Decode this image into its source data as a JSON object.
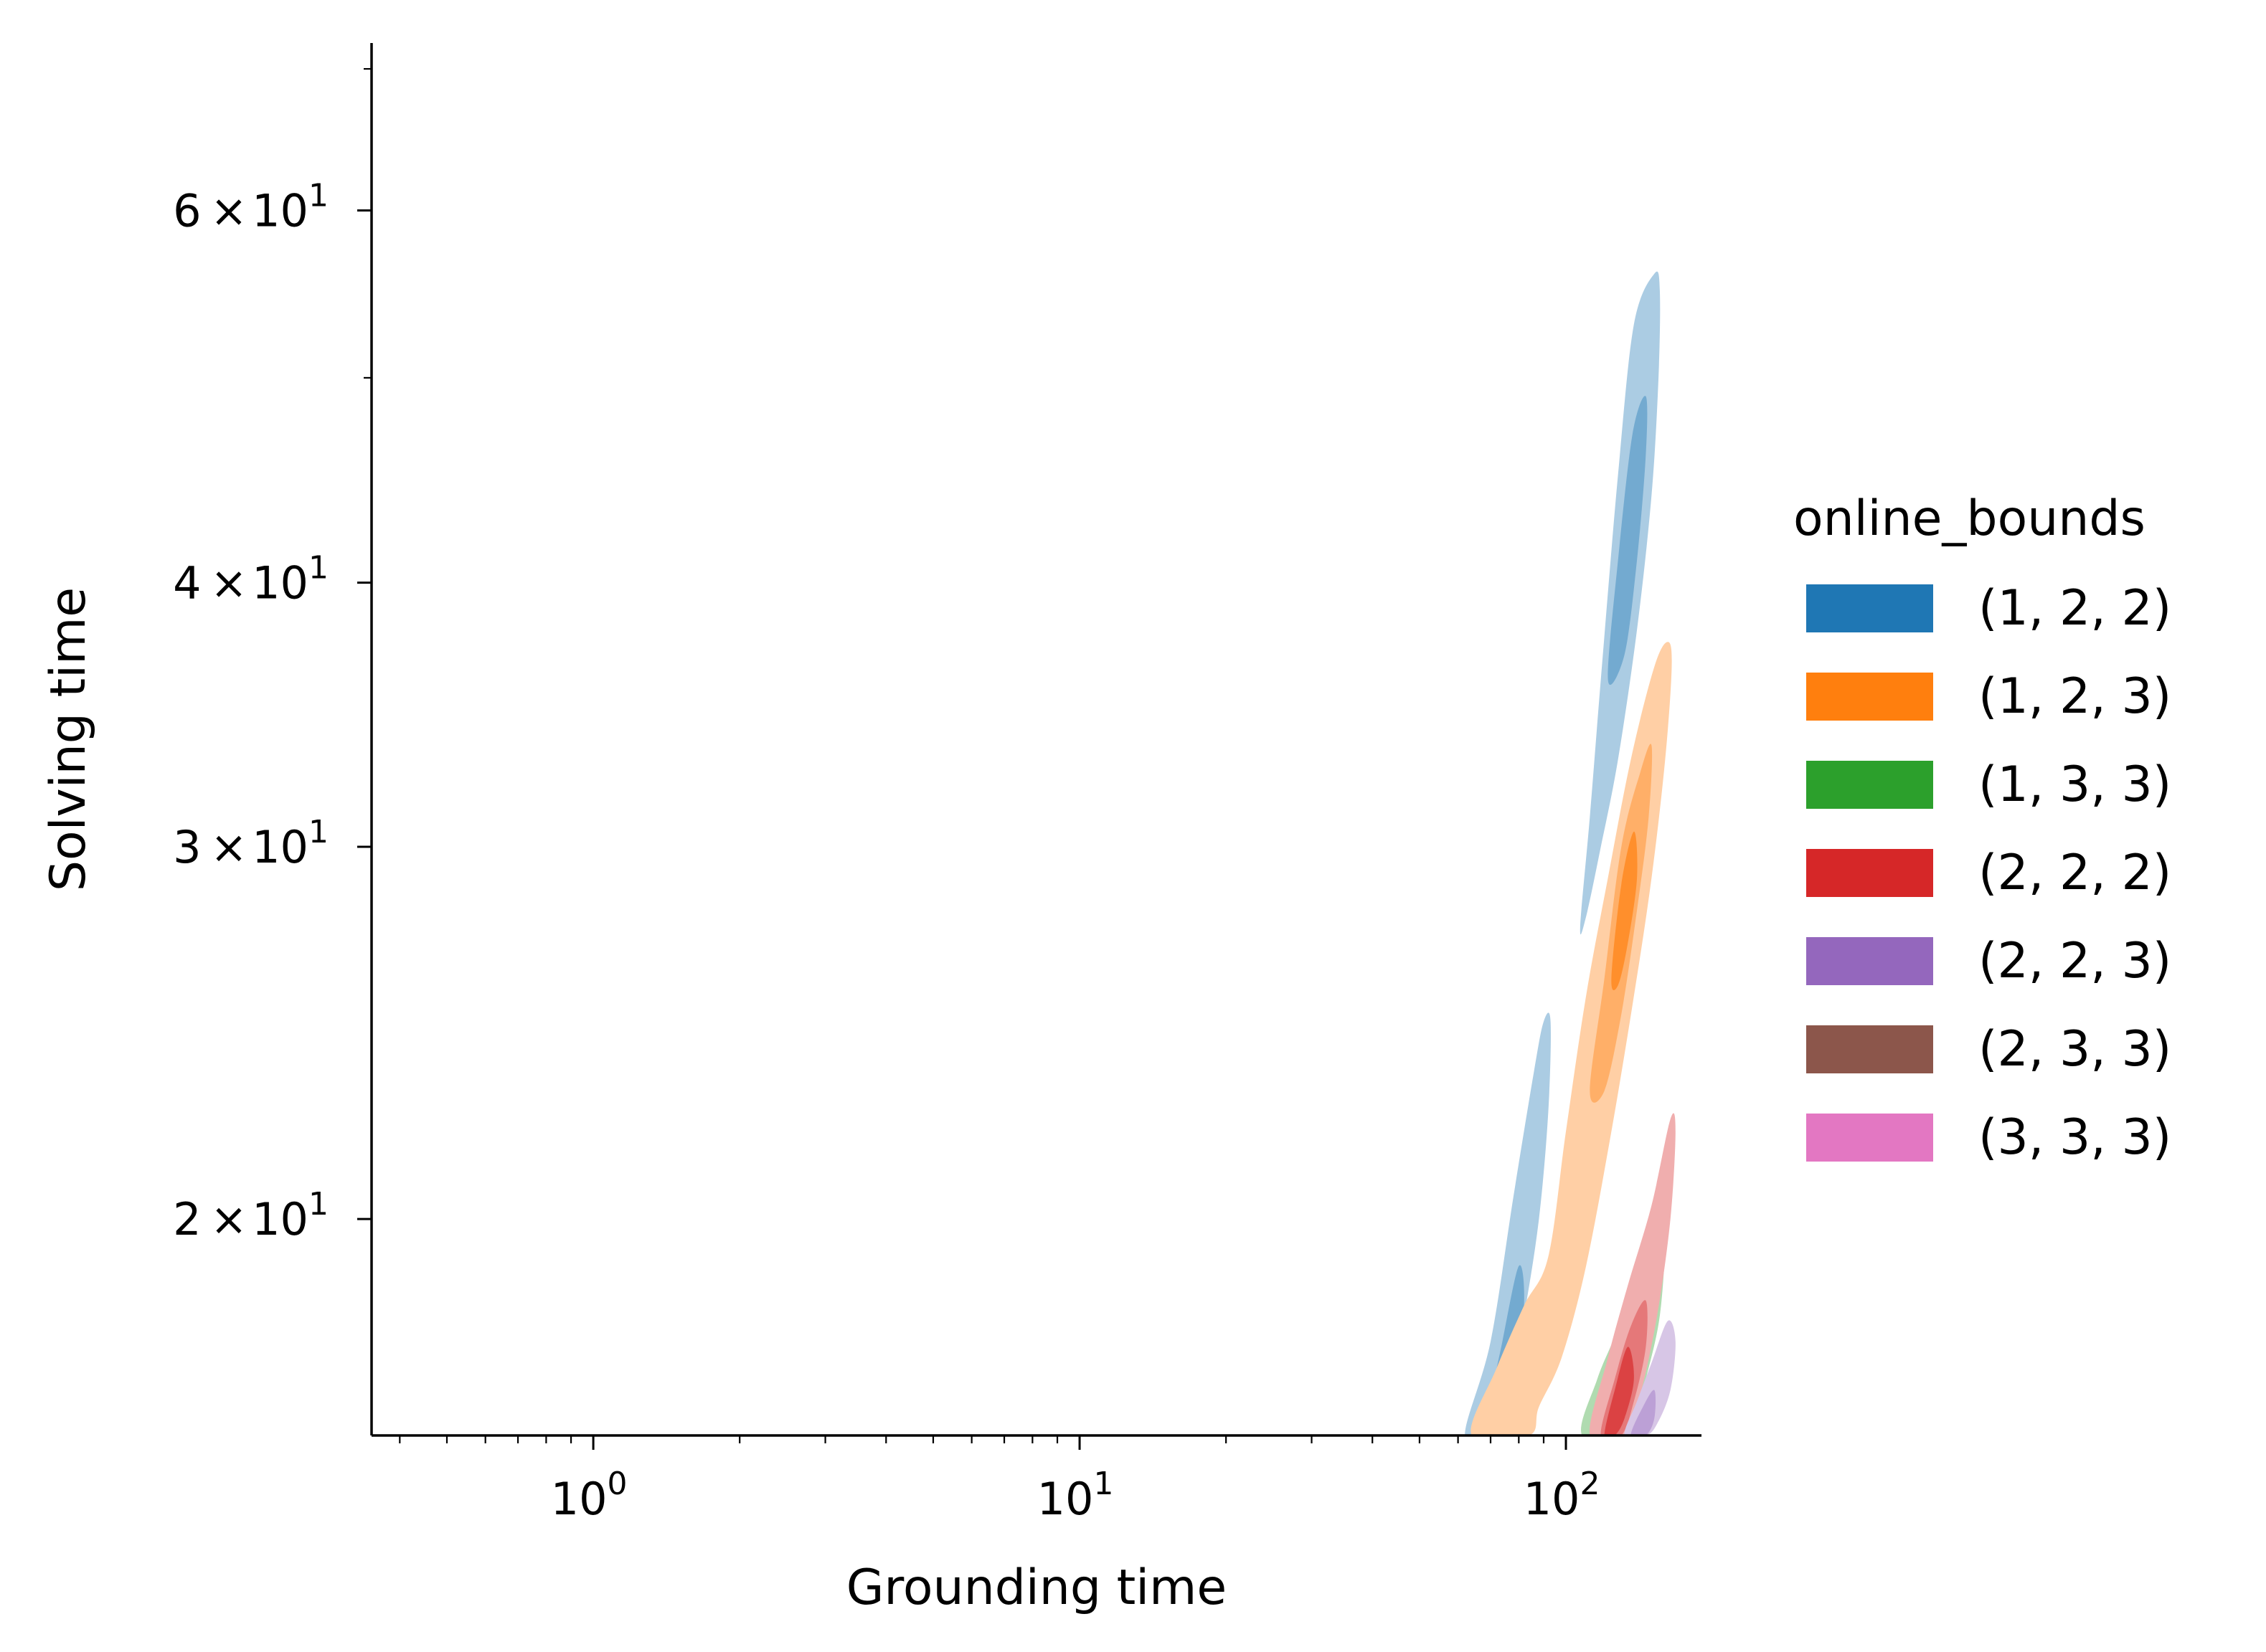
{
  "chart_data": {
    "type": "kde-contour",
    "xlabel": "Grounding time",
    "ylabel": "Solving time",
    "xscale": "log",
    "yscale": "log",
    "xlim": [
      0.35,
      190
    ],
    "ylim": [
      15.8,
      72
    ],
    "x_ticks": [
      {
        "value": 1,
        "base": "10",
        "exp": "0"
      },
      {
        "value": 10,
        "base": "10",
        "exp": "1"
      },
      {
        "value": 100,
        "base": "10",
        "exp": "2"
      }
    ],
    "y_ticks": [
      {
        "value": 20,
        "mant": "2",
        "base": "10",
        "exp": "1"
      },
      {
        "value": 30,
        "mant": "3",
        "base": "10",
        "exp": "1"
      },
      {
        "value": 40,
        "mant": "4",
        "base": "10",
        "exp": "1"
      },
      {
        "value": 60,
        "mant": "6",
        "base": "10",
        "exp": "1"
      }
    ],
    "legend": {
      "title": "online_bounds",
      "position": "right"
    },
    "series": [
      {
        "name": "(1, 2, 2)",
        "color": "#1f77b4",
        "contours": [
          {
            "level": 0.4,
            "points": [
              [
                107,
                27.5
              ],
              [
                112,
                31
              ],
              [
                118,
                36
              ],
              [
                128,
                45
              ],
              [
                138,
                53
              ],
              [
                152,
                56
              ],
              [
                156,
                55
              ],
              [
                155,
                50
              ],
              [
                150,
                44
              ],
              [
                140,
                38
              ],
              [
                128,
                33
              ],
              [
                118,
                30
              ],
              [
                110,
                27.8
              ]
            ]
          },
          {
            "level": 0.6,
            "points": [
              [
                122,
                36
              ],
              [
                128,
                41
              ],
              [
                137,
                47
              ],
              [
                146,
                49
              ],
              [
                146,
                46
              ],
              [
                140,
                41
              ],
              [
                132,
                37
              ]
            ]
          },
          {
            "level": 0.4,
            "points": [
              [
                62,
                15.8
              ],
              [
                70,
                17.5
              ],
              [
                78,
                20.5
              ],
              [
                86,
                23.5
              ],
              [
                90,
                24.8
              ],
              [
                93,
                24.8
              ],
              [
                92,
                22.5
              ],
              [
                88,
                20
              ],
              [
                82,
                18
              ],
              [
                76,
                16.5
              ],
              [
                71,
                15.8
              ]
            ]
          },
          {
            "level": 0.6,
            "points": [
              [
                68,
                15.8
              ],
              [
                74,
                17.5
              ],
              [
                80,
                19
              ],
              [
                82,
                18.2
              ],
              [
                78,
                16.5
              ],
              [
                74,
                15.8
              ]
            ]
          }
        ]
      },
      {
        "name": "(1, 2, 3)",
        "color": "#ff7f0e",
        "contours": [
          {
            "level": 0.4,
            "points": [
              [
                64,
                15.8
              ],
              [
                72,
                17
              ],
              [
                82,
                18.2
              ],
              [
                92,
                19.2
              ],
              [
                100,
                22
              ],
              [
                110,
                25.5
              ],
              [
                122,
                29
              ],
              [
                136,
                33
              ],
              [
                152,
                36.5
              ],
              [
                162,
                37.5
              ],
              [
                165,
                36.5
              ],
              [
                160,
                33
              ],
              [
                150,
                29
              ],
              [
                138,
                25.5
              ],
              [
                124,
                22
              ],
              [
                110,
                19
              ],
              [
                98,
                17.2
              ],
              [
                88,
                16.3
              ],
              [
                84,
                15.8
              ]
            ]
          },
          {
            "level": 0.6,
            "points": [
              [
                112,
                23
              ],
              [
                120,
                26
              ],
              [
                130,
                30
              ],
              [
                142,
                32.5
              ],
              [
                150,
                33.5
              ],
              [
                148,
                31
              ],
              [
                140,
                28
              ],
              [
                130,
                25
              ],
              [
                120,
                23
              ]
            ]
          },
          {
            "level": 0.8,
            "points": [
              [
                124,
                26
              ],
              [
                130,
                28.8
              ],
              [
                138,
                30.5
              ],
              [
                140,
                29
              ],
              [
                134,
                27
              ],
              [
                128,
                25.8
              ]
            ]
          }
        ]
      },
      {
        "name": "(1, 3, 3)",
        "color": "#2ca02c",
        "contours": [
          {
            "level": 0.4,
            "points": [
              [
                108,
                15.8
              ],
              [
                116,
                16.8
              ],
              [
                126,
                17.6
              ],
              [
                140,
                18.8
              ],
              [
                156,
                19.9
              ],
              [
                160,
                19.6
              ],
              [
                156,
                18
              ],
              [
                146,
                16.8
              ],
              [
                136,
                15.8
              ]
            ]
          }
        ]
      },
      {
        "name": "(2, 2, 2)",
        "color": "#d62728",
        "contours": [
          {
            "level": 0.4,
            "points": [
              [
                112,
                15.8
              ],
              [
                122,
                17.2
              ],
              [
                134,
                18.6
              ],
              [
                150,
                20.3
              ],
              [
                164,
                22.3
              ],
              [
                168,
                22
              ],
              [
                164,
                20
              ],
              [
                154,
                18
              ],
              [
                142,
                16.5
              ],
              [
                132,
                15.8
              ]
            ]
          },
          {
            "level": 0.6,
            "points": [
              [
                118,
                15.8
              ],
              [
                126,
                16.8
              ],
              [
                136,
                17.8
              ],
              [
                146,
                18.3
              ],
              [
                146,
                17.4
              ],
              [
                138,
                16.4
              ],
              [
                130,
                15.8
              ]
            ]
          },
          {
            "level": 0.8,
            "points": [
              [
                120,
                15.8
              ],
              [
                126,
                16.6
              ],
              [
                134,
                17.4
              ],
              [
                138,
                16.8
              ],
              [
                132,
                16.1
              ],
              [
                126,
                15.8
              ]
            ]
          }
        ]
      },
      {
        "name": "(2, 2, 3)",
        "color": "#9467bd",
        "contours": [
          {
            "level": 0.4,
            "points": [
              [
                132,
                15.8
              ],
              [
                140,
                16.4
              ],
              [
                150,
                17.1
              ],
              [
                162,
                17.9
              ],
              [
                168,
                17.5
              ],
              [
                164,
                16.6
              ],
              [
                154,
                16
              ],
              [
                146,
                15.8
              ]
            ]
          },
          {
            "level": 0.6,
            "points": [
              [
                136,
                15.8
              ],
              [
                144,
                16.3
              ],
              [
                152,
                16.6
              ],
              [
                152,
                16.1
              ],
              [
                146,
                15.8
              ]
            ]
          }
        ]
      },
      {
        "name": "(2, 3, 3)",
        "color": "#8c564b",
        "contours": []
      },
      {
        "name": "(3, 3, 3)",
        "color": "#e377c2",
        "contours": []
      }
    ]
  }
}
